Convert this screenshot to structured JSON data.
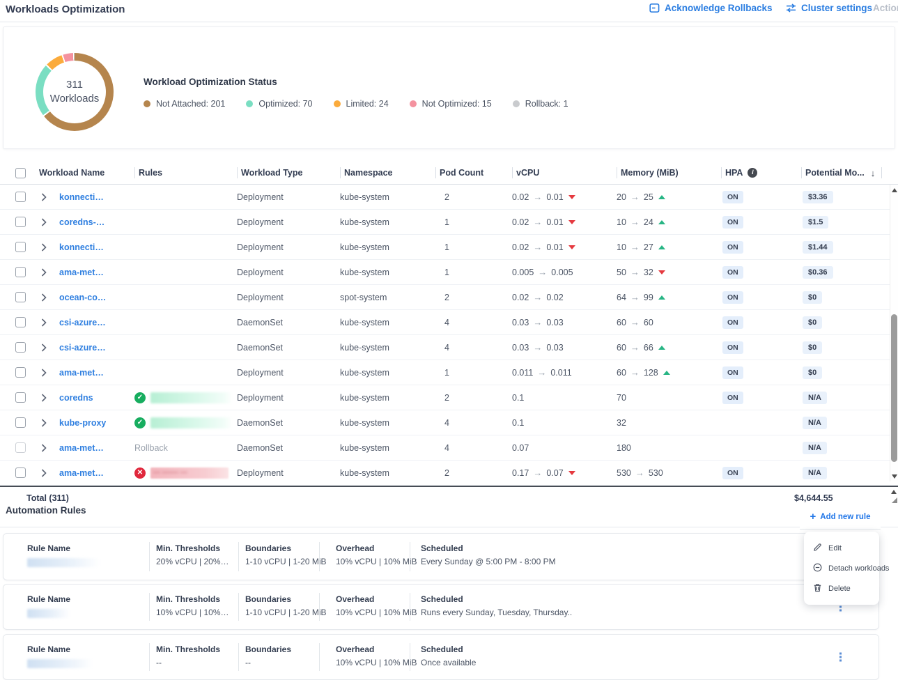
{
  "topbar": {
    "title": "Workloads Optimization",
    "acknowledge_label": "Acknowledge Rollbacks",
    "cluster_settings_label": "Cluster settings",
    "actions_label": "Action"
  },
  "summary": {
    "donut_center_value": "311",
    "donut_center_label": "Workloads",
    "legend_title": "Workload Optimization Status",
    "statuses": [
      {
        "label": "Not Attached: 201",
        "value": 201,
        "color": "#b5854d"
      },
      {
        "label": "Optimized: 70",
        "value": 70,
        "color": "#7adec2"
      },
      {
        "label": "Limited: 24",
        "value": 24,
        "color": "#fbab3c"
      },
      {
        "label": "Not Optimized: 15",
        "value": 15,
        "color": "#f4929f"
      },
      {
        "label": "Rollback: 1",
        "value": 1,
        "color": "#c9cbce"
      }
    ]
  },
  "chart_data": {
    "type": "pie",
    "title": "Workload Optimization Status",
    "categories": [
      "Not Attached",
      "Optimized",
      "Limited",
      "Not Optimized",
      "Rollback"
    ],
    "values": [
      201,
      70,
      24,
      15,
      1
    ],
    "total_label": "311 Workloads",
    "colors": [
      "#b5854d",
      "#7adec2",
      "#fbab3c",
      "#f4929f",
      "#c9cbce"
    ],
    "legend_position": "right"
  },
  "table": {
    "columns": [
      "Workload Name",
      "Rules",
      "Workload Type",
      "Namespace",
      "Pod Count",
      "vCPU",
      "Memory (MiB)",
      "HPA",
      "Potential Mo..."
    ],
    "sort_column": "Potential Mo...",
    "sort_direction": "desc",
    "rows": [
      {
        "name": "konnecti…",
        "rule": {
          "kind": "none"
        },
        "type": "Deployment",
        "namespace": "kube-system",
        "pods": "2",
        "vcpu": {
          "from": "0.02",
          "to": "0.01",
          "trend": "down"
        },
        "memory": {
          "from": "20",
          "to": "25",
          "trend": "up"
        },
        "hpa": "ON",
        "potential": "$3.36"
      },
      {
        "name": "coredns-…",
        "rule": {
          "kind": "none"
        },
        "type": "Deployment",
        "namespace": "kube-system",
        "pods": "1",
        "vcpu": {
          "from": "0.02",
          "to": "0.01",
          "trend": "down"
        },
        "memory": {
          "from": "10",
          "to": "24",
          "trend": "up"
        },
        "hpa": "ON",
        "potential": "$1.5"
      },
      {
        "name": "konnecti…",
        "rule": {
          "kind": "none"
        },
        "type": "Deployment",
        "namespace": "kube-system",
        "pods": "1",
        "vcpu": {
          "from": "0.02",
          "to": "0.01",
          "trend": "down"
        },
        "memory": {
          "from": "10",
          "to": "27",
          "trend": "up"
        },
        "hpa": "ON",
        "potential": "$1.44"
      },
      {
        "name": "ama-met…",
        "rule": {
          "kind": "none"
        },
        "type": "Deployment",
        "namespace": "kube-system",
        "pods": "1",
        "vcpu": {
          "from": "0.005",
          "to": "0.005"
        },
        "memory": {
          "from": "50",
          "to": "32",
          "trend": "down"
        },
        "hpa": "ON",
        "potential": "$0.36"
      },
      {
        "name": "ocean-co…",
        "rule": {
          "kind": "none"
        },
        "type": "Deployment",
        "namespace": "spot-system",
        "pods": "2",
        "vcpu": {
          "from": "0.02",
          "to": "0.02"
        },
        "memory": {
          "from": "64",
          "to": "99",
          "trend": "up"
        },
        "hpa": "ON",
        "potential": "$0"
      },
      {
        "name": "csi-azure…",
        "rule": {
          "kind": "none"
        },
        "type": "DaemonSet",
        "namespace": "kube-system",
        "pods": "4",
        "vcpu": {
          "from": "0.03",
          "to": "0.03"
        },
        "memory": {
          "from": "60",
          "to": "60"
        },
        "hpa": "ON",
        "potential": "$0"
      },
      {
        "name": "csi-azure…",
        "rule": {
          "kind": "none"
        },
        "type": "DaemonSet",
        "namespace": "kube-system",
        "pods": "4",
        "vcpu": {
          "from": "0.03",
          "to": "0.03"
        },
        "memory": {
          "from": "60",
          "to": "66",
          "trend": "up"
        },
        "hpa": "ON",
        "potential": "$0"
      },
      {
        "name": "ama-met…",
        "rule": {
          "kind": "none"
        },
        "type": "Deployment",
        "namespace": "kube-system",
        "pods": "1",
        "vcpu": {
          "from": "0.011",
          "to": "0.011"
        },
        "memory": {
          "from": "60",
          "to": "128",
          "trend": "up"
        },
        "hpa": "ON",
        "potential": "$0"
      },
      {
        "name": "coredns",
        "rule": {
          "kind": "attached-ok",
          "redacted": true
        },
        "type": "Deployment",
        "namespace": "kube-system",
        "pods": "2",
        "vcpu": {
          "from": "0.1"
        },
        "memory": {
          "from": "70"
        },
        "hpa": "ON",
        "potential": "N/A"
      },
      {
        "name": "kube-proxy",
        "rule": {
          "kind": "attached-ok",
          "redacted": true
        },
        "type": "DaemonSet",
        "namespace": "kube-system",
        "pods": "4",
        "vcpu": {
          "from": "0.1"
        },
        "memory": {
          "from": "32"
        },
        "hpa": "",
        "potential": "N/A"
      },
      {
        "name": "ama-met…",
        "rule": {
          "kind": "rollback",
          "label": "Rollback"
        },
        "type": "DaemonSet",
        "namespace": "kube-system",
        "pods": "4",
        "vcpu": {
          "from": "0.07"
        },
        "memory": {
          "from": "180"
        },
        "hpa": "",
        "potential": "N/A",
        "muted": true
      },
      {
        "name": "ama-met…",
        "rule": {
          "kind": "attached-error",
          "redacted": true
        },
        "type": "Deployment",
        "namespace": "kube-system",
        "pods": "2",
        "vcpu": {
          "from": "0.17",
          "to": "0.07",
          "trend": "down"
        },
        "memory": {
          "from": "530",
          "to": "530"
        },
        "hpa": "ON",
        "potential": "N/A"
      }
    ],
    "total_label": "Total (311)",
    "total_value": "$4,644.55"
  },
  "rules_section": {
    "title": "Automation Rules",
    "add_rule_label": "Add new rule",
    "field_labels": {
      "name": "Rule Name",
      "min": "Min. Thresholds",
      "boundaries": "Boundaries",
      "overhead": "Overhead",
      "scheduled": "Scheduled"
    },
    "rules": [
      {
        "min": "20% vCPU | 20%…",
        "boundaries": "1-10 vCPU | 1-20 MiB",
        "overhead": "10% vCPU | 10% MiB",
        "scheduled": "Every Sunday @ 5:00 PM - 8:00 PM"
      },
      {
        "min": "10% vCPU | 10%…",
        "boundaries": "1-10 vCPU | 1-20 MiB",
        "overhead": "10% vCPU | 10% MiB",
        "scheduled": "Runs every Sunday, Tuesday, Thursday.."
      },
      {
        "min": "--",
        "boundaries": "--",
        "overhead": "10% vCPU | 10% MiB",
        "scheduled": "Once available"
      }
    ]
  },
  "context_menu": {
    "items": [
      {
        "label": "Edit",
        "icon": "pencil-icon"
      },
      {
        "label": "Detach workloads",
        "icon": "detach-icon"
      },
      {
        "label": "Delete",
        "icon": "trash-icon"
      }
    ]
  }
}
